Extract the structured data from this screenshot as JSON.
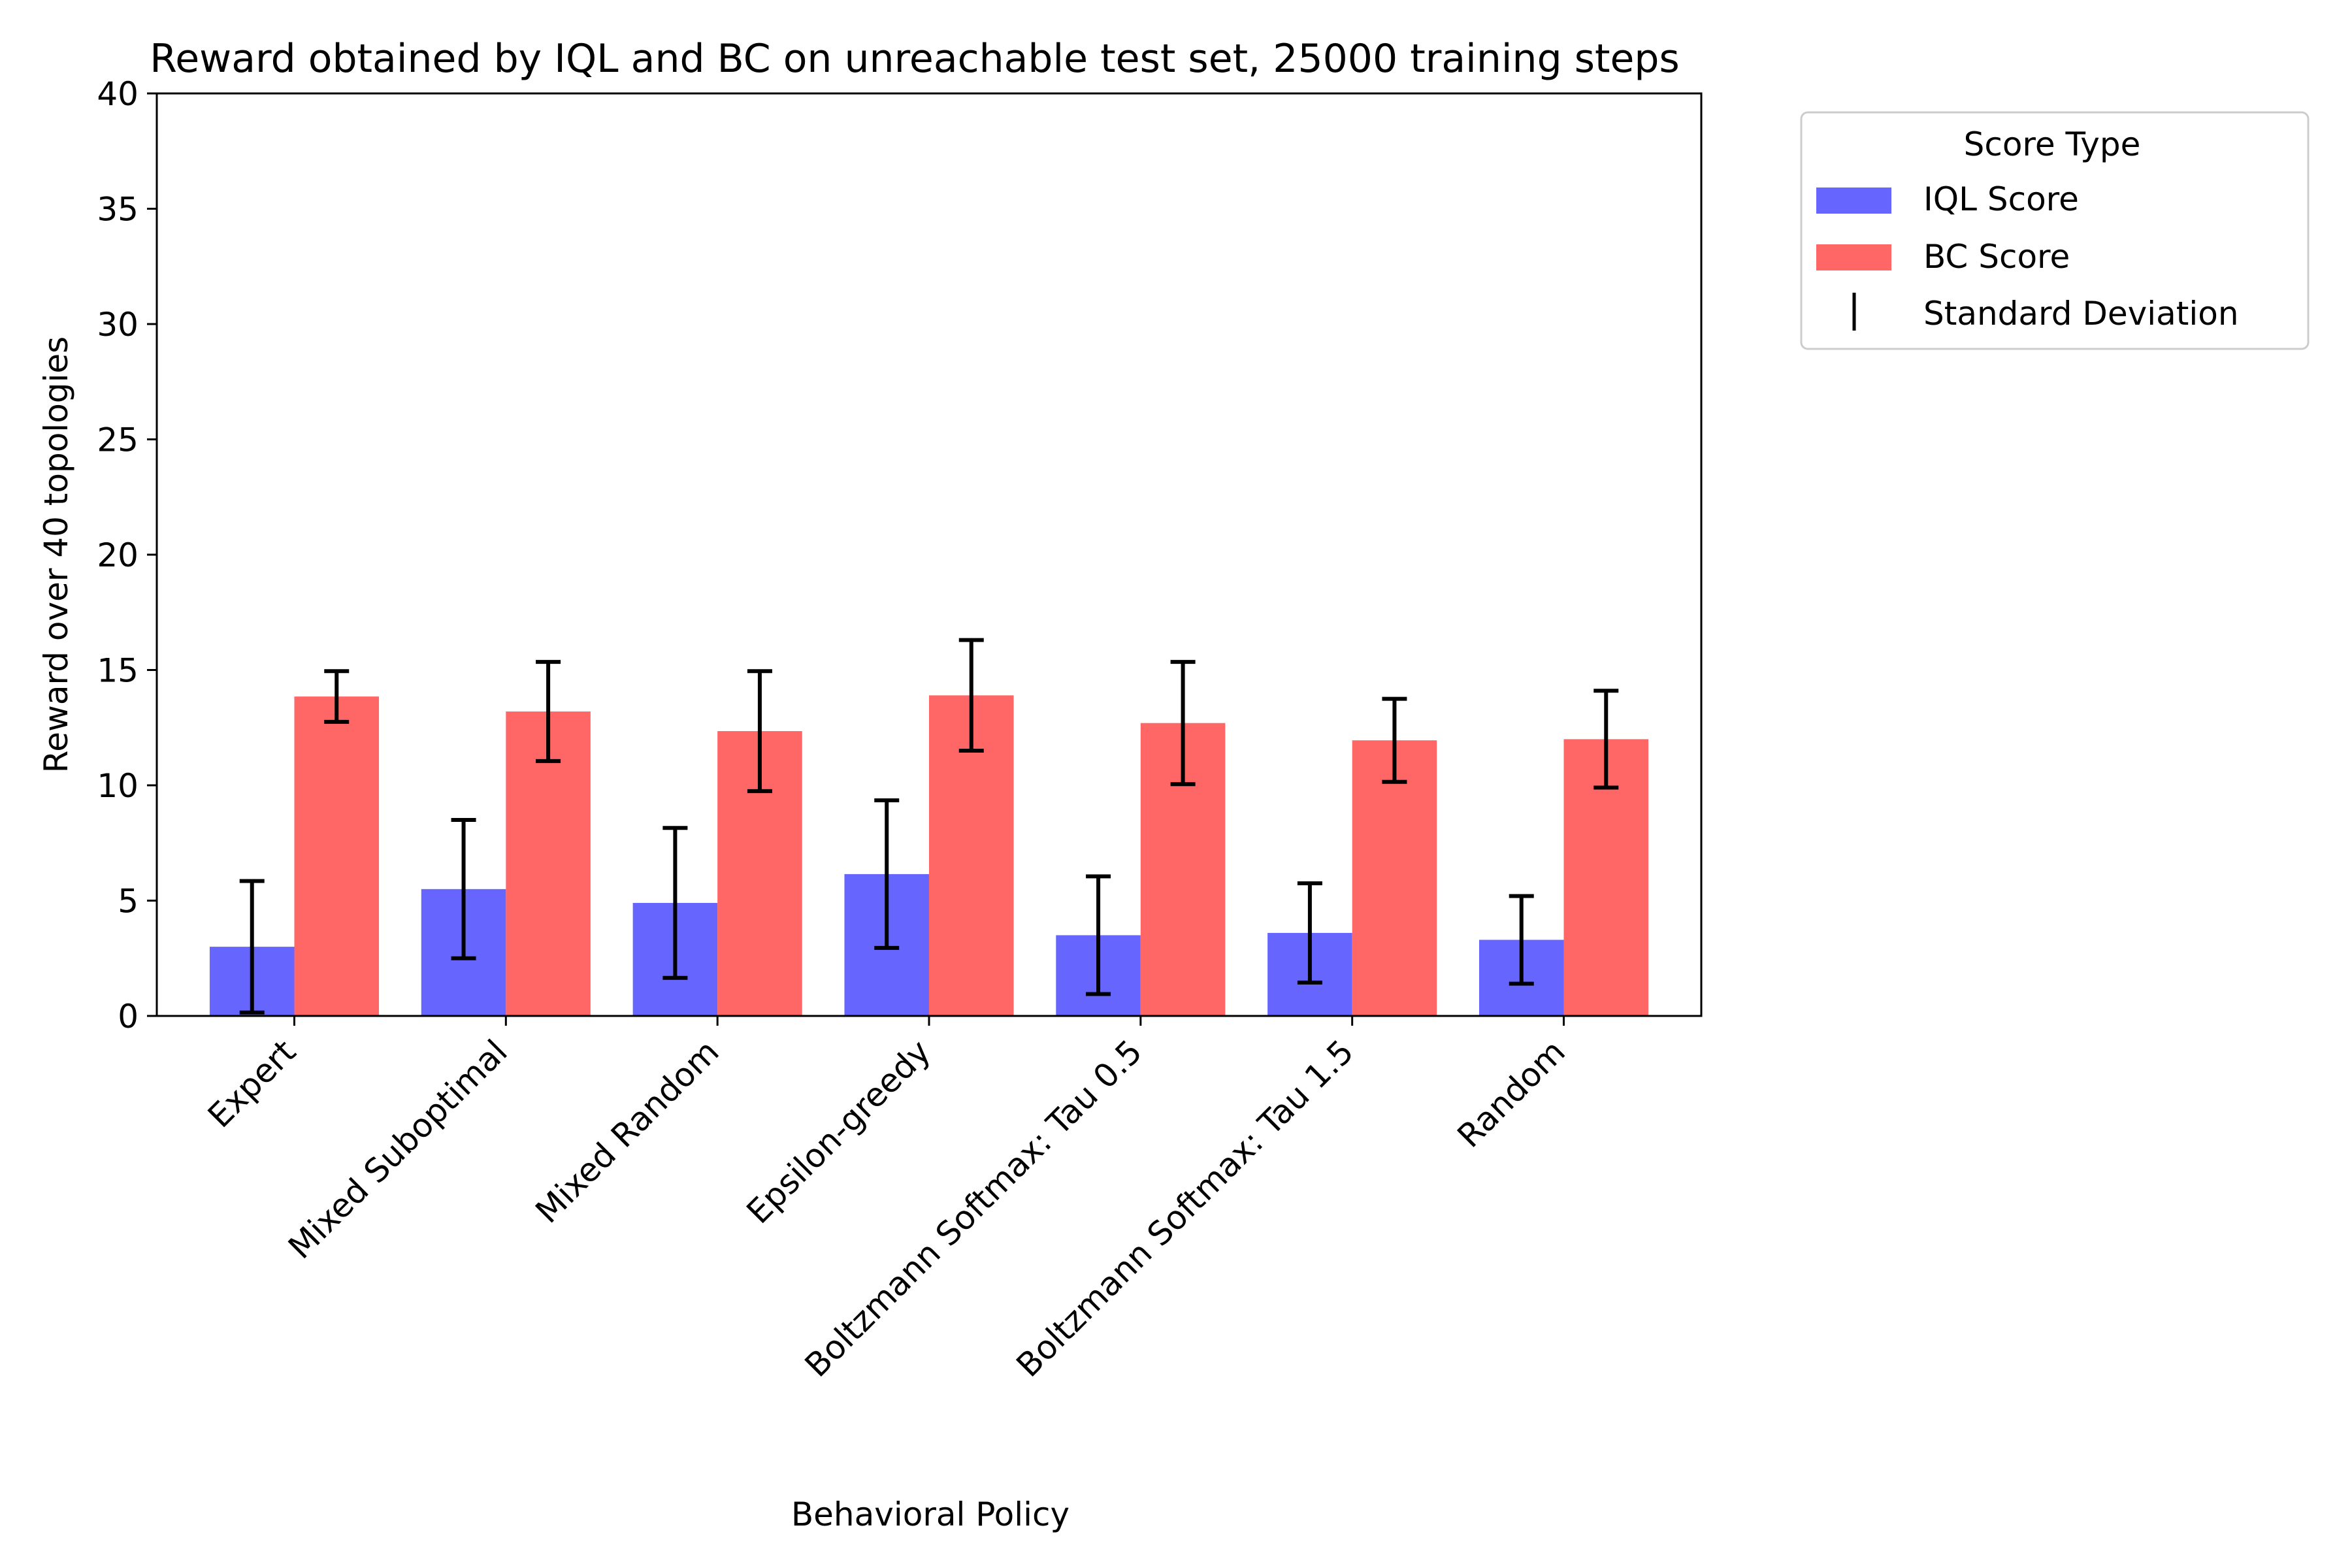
{
  "chart_data": {
    "type": "bar",
    "title": "Reward obtained by IQL and BC on unreachable test set, 25000 training steps",
    "xlabel": "Behavioral Policy",
    "ylabel": "Reward over 40 topologies",
    "ylim": [
      0,
      40
    ],
    "yticks": [
      0,
      5,
      10,
      15,
      20,
      25,
      30,
      35,
      40
    ],
    "grid": false,
    "legend_position": "outside-right-top",
    "legend_title": "Score Type",
    "categories": [
      "Expert",
      "Mixed Suboptimal",
      "Mixed Random",
      "Epsilon-greedy",
      "Boltzmann Softmax: Tau 0.5",
      "Boltzmann Softmax: Tau 1.5",
      "Random"
    ],
    "series": [
      {
        "name": "IQL Score",
        "color": "#6666ff",
        "values": [
          3.0,
          5.5,
          4.9,
          6.15,
          3.5,
          3.6,
          3.3
        ],
        "std": [
          2.85,
          3.0,
          3.25,
          3.2,
          2.55,
          2.15,
          1.9
        ]
      },
      {
        "name": "BC Score",
        "color": "#ff6666",
        "values": [
          13.85,
          13.2,
          12.35,
          13.9,
          12.7,
          11.95,
          12.0
        ],
        "std": [
          1.1,
          2.15,
          2.6,
          2.4,
          2.65,
          1.8,
          2.1
        ]
      }
    ],
    "error_bar_label": "Standard Deviation",
    "error_bar_color": "#000000"
  }
}
